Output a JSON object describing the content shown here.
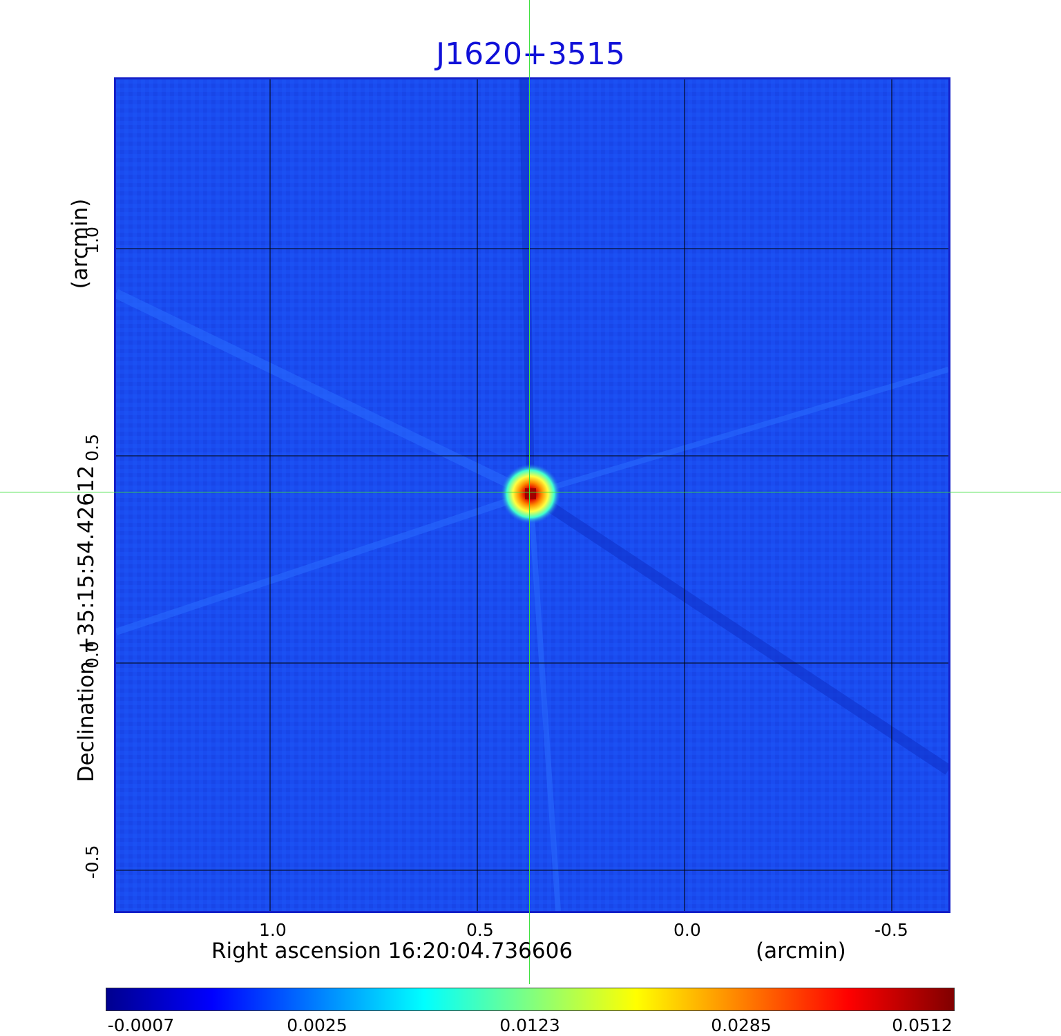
{
  "title": "J1620+3515",
  "x_axis": {
    "label": "Right ascension  16:20:04.736606",
    "unit": "(arcmin)",
    "ticks": [
      "1.0",
      "0.5",
      "0.0",
      "-0.5"
    ]
  },
  "y_axis": {
    "label": "Declination  +35:15:54.42612",
    "unit": "(arcmin)",
    "ticks": [
      "1.0",
      "0.5",
      "0.0",
      "-0.5"
    ]
  },
  "colorbar": {
    "ticks": [
      "-0.0007",
      "0.0025",
      "0.0123",
      "0.0285",
      "0.0512"
    ],
    "colormap": [
      "#00008f",
      "#0000ff",
      "#0080ff",
      "#00ffff",
      "#80ff80",
      "#ffff00",
      "#ff8000",
      "#ff0000",
      "#800000"
    ]
  },
  "colors": {
    "background": "#1a4cf0",
    "frame": "#1420c8",
    "title": "#1010d8",
    "crosshair": "#40e040",
    "grid": "#000000"
  },
  "crosshair": {
    "ra_offset_arcmin": 0.37,
    "dec_offset_arcmin": 0.41
  }
}
